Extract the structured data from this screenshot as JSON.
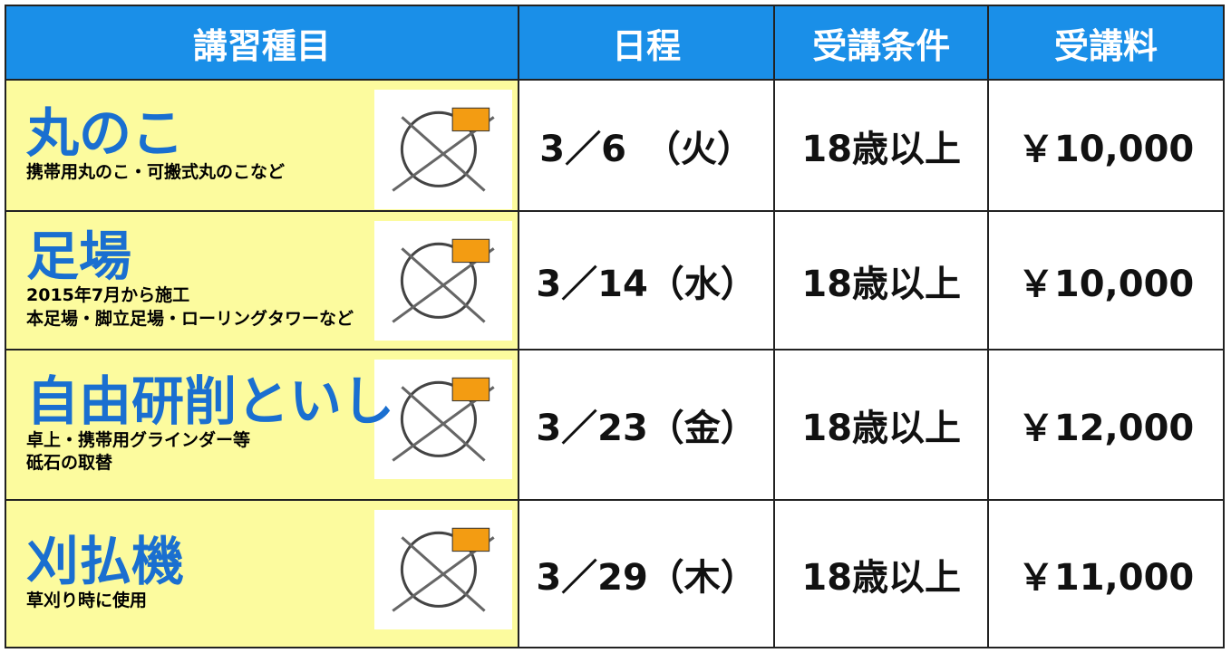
{
  "table": {
    "header": [
      "講習種目",
      "日程",
      "受講条件",
      "受講料"
    ],
    "rows": [
      {
        "name": "丸のこ",
        "notes": [
          "携帯用丸のこ・可搬式丸のこなど"
        ],
        "date": "3／6　（火）",
        "condition": "18歳以上",
        "fee": "￥10,000"
      },
      {
        "name": "足場",
        "highlight": "2015年7月から施工",
        "notes": [
          "本足場・脚立足場・ローリングタワーなど"
        ],
        "date": "3／14（水）",
        "condition": "18歳以上",
        "fee": "￥10,000"
      },
      {
        "name": "自由研削といし",
        "notes": [
          "卓上・携帯用グラインダー等",
          "砥石の取替"
        ],
        "date": "3／23（金）",
        "condition": "18歳以上",
        "fee": "￥12,000"
      },
      {
        "name": "刈払機",
        "notes": [
          "草刈り時に使用"
        ],
        "date": "3／29（木）",
        "condition": "18歳以上",
        "fee": "￥11,000"
      }
    ]
  }
}
